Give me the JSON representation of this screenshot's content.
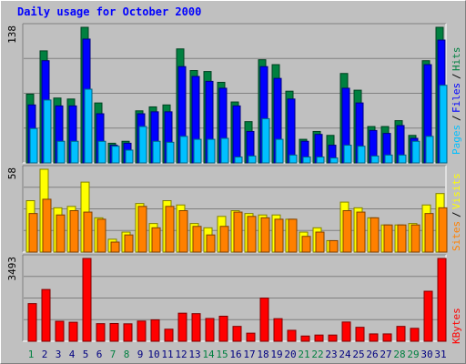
{
  "chart_data": [
    {
      "type": "bar",
      "title": "Daily usage for October 2000",
      "panel": "hits-files-pages",
      "ymax_label": "138",
      "ylim": [
        0,
        138
      ],
      "categories": [
        "1",
        "2",
        "3",
        "4",
        "5",
        "6",
        "7",
        "8",
        "9",
        "10",
        "11",
        "12",
        "13",
        "14",
        "15",
        "16",
        "17",
        "18",
        "19",
        "20",
        "21",
        "22",
        "23",
        "24",
        "25",
        "26",
        "27",
        "28",
        "29",
        "30",
        "31"
      ],
      "weekend_days": [
        "1",
        "7",
        "8",
        "14",
        "15",
        "21",
        "22",
        "28",
        "29"
      ],
      "series": [
        {
          "name": "Hits",
          "color": "#008040",
          "values": [
            70,
            114,
            66,
            65,
            138,
            61,
            20,
            22,
            53,
            57,
            59,
            116,
            94,
            93,
            82,
            62,
            42,
            105,
            100,
            73,
            24,
            32,
            28,
            91,
            74,
            37,
            37,
            43,
            28,
            104,
            138
          ]
        },
        {
          "name": "Files",
          "color": "#0000FF",
          "values": [
            59,
            104,
            58,
            58,
            126,
            50,
            18,
            20,
            50,
            52,
            52,
            98,
            88,
            83,
            76,
            58,
            32,
            98,
            86,
            65,
            22,
            29,
            18,
            76,
            61,
            33,
            30,
            38,
            25,
            100,
            125
          ]
        },
        {
          "name": "Pages",
          "color": "#00C0FF",
          "values": [
            35,
            64,
            22,
            22,
            75,
            22,
            17,
            13,
            37,
            22,
            21,
            27,
            24,
            24,
            25,
            6,
            7,
            45,
            24,
            8,
            6,
            6,
            5,
            18,
            17,
            7,
            8,
            8,
            22,
            27,
            79
          ]
        }
      ],
      "legend": [
        "Pages",
        "Files",
        "Hits"
      ],
      "grid": true
    },
    {
      "type": "bar",
      "panel": "visits-sites",
      "ymax_label": "58",
      "ylim": [
        0,
        58
      ],
      "categories": [
        "1",
        "2",
        "3",
        "4",
        "5",
        "6",
        "7",
        "8",
        "9",
        "10",
        "11",
        "12",
        "13",
        "14",
        "15",
        "16",
        "17",
        "18",
        "19",
        "20",
        "21",
        "22",
        "23",
        "24",
        "25",
        "26",
        "27",
        "28",
        "29",
        "30",
        "31"
      ],
      "series": [
        {
          "name": "Visits",
          "color": "#FFFF00",
          "values": [
            36,
            58,
            31,
            32,
            49,
            24,
            9,
            14,
            34,
            20,
            36,
            33,
            20,
            17,
            25,
            29,
            27,
            26,
            26,
            23,
            14,
            17,
            8,
            35,
            31,
            24,
            19,
            19,
            20,
            33,
            41
          ]
        },
        {
          "name": "Sites",
          "color": "#FF8000",
          "values": [
            27,
            37,
            26,
            29,
            28,
            23,
            7,
            12,
            32,
            17,
            32,
            29,
            18,
            12,
            18,
            28,
            25,
            24,
            23,
            23,
            11,
            14,
            8,
            29,
            28,
            24,
            19,
            19,
            19,
            27,
            31
          ]
        }
      ],
      "legend": [
        "Sites",
        "Visits"
      ],
      "grid": true
    },
    {
      "type": "bar",
      "panel": "kbytes",
      "ymax_label": "3493",
      "ylim": [
        0,
        3493
      ],
      "categories": [
        "1",
        "2",
        "3",
        "4",
        "5",
        "6",
        "7",
        "8",
        "9",
        "10",
        "11",
        "12",
        "13",
        "14",
        "15",
        "16",
        "17",
        "18",
        "19",
        "20",
        "21",
        "22",
        "23",
        "24",
        "25",
        "26",
        "27",
        "28",
        "29",
        "30",
        "31"
      ],
      "series": [
        {
          "name": "KBytes",
          "color": "#FF0000",
          "values": [
            1588,
            2183,
            844,
            802,
            3493,
            742,
            749,
            736,
            852,
            905,
            509,
            1184,
            1164,
            961,
            1056,
            627,
            341,
            1822,
            953,
            462,
            221,
            262,
            262,
            812,
            589,
            310,
            310,
            627,
            546,
            2110,
            3493
          ]
        }
      ],
      "legend": [
        "KBytes"
      ],
      "grid": true
    }
  ]
}
